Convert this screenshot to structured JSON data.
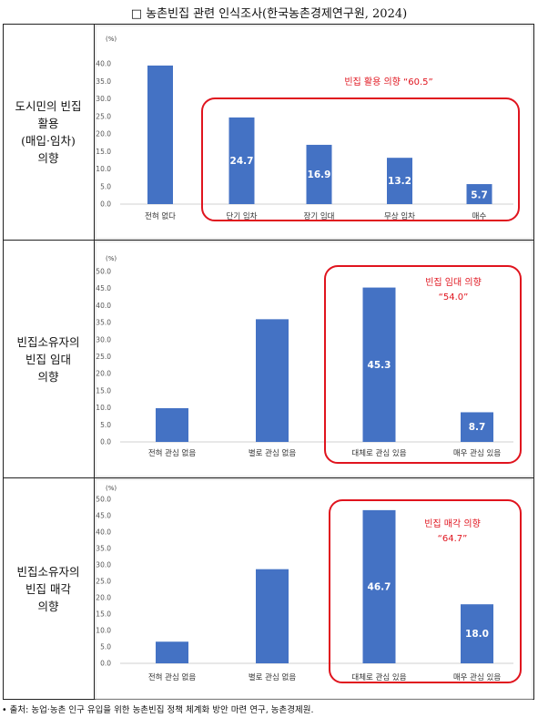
{
  "title": "□ 농촌빈집 관련 인식조사(한국농촌경제연구원, 2024)",
  "rows": [
    {
      "label_lines": [
        "도시민의 빈집",
        "활용",
        "(매입·임차)",
        "의향"
      ]
    },
    {
      "label_lines": [
        "빈집소유자의",
        "빈집 임대",
        "의향"
      ]
    },
    {
      "label_lines": [
        "빈집소유자의",
        "빈집 매각",
        "의향"
      ]
    }
  ],
  "chart_data": [
    {
      "type": "bar",
      "unit_label": "(%)",
      "ylim": [
        0,
        40
      ],
      "yticks": [
        "0.0",
        "5.0",
        "10.0",
        "15.0",
        "20.0",
        "25.0",
        "30.0",
        "35.0",
        "40.0"
      ],
      "categories": [
        "전혀 없다",
        "단기 임차",
        "장기 임대",
        "무상 임차",
        "매수"
      ],
      "values": [
        39.5,
        24.7,
        16.9,
        13.2,
        5.7
      ],
      "data_labels": [
        "",
        "24.7",
        "16.9",
        "13.2",
        "5.7"
      ],
      "grid": false,
      "bar_color": "#4472c4",
      "annotation": {
        "text_lines": [
          "빈집 활용 의향 “60.5”"
        ],
        "color": "#e0141e",
        "highlight_from": 1,
        "highlight_to": 4
      }
    },
    {
      "type": "bar",
      "unit_label": "(%)",
      "ylim": [
        0,
        50
      ],
      "yticks": [
        "0.0",
        "5.0",
        "10.0",
        "15.0",
        "20.0",
        "25.0",
        "30.0",
        "35.0",
        "40.0",
        "45.0",
        "50.0"
      ],
      "categories": [
        "전혀 관심 없음",
        "별로 관심 없음",
        "대체로 관심 있음",
        "매우 관심 있음"
      ],
      "values": [
        9.9,
        36.0,
        45.3,
        8.7
      ],
      "data_labels": [
        "",
        "",
        "45.3",
        "8.7"
      ],
      "grid": false,
      "bar_color": "#4472c4",
      "annotation": {
        "text_lines": [
          "빈집 임대 의향",
          "“54.0”"
        ],
        "color": "#e0141e",
        "highlight_from": 2,
        "highlight_to": 3
      }
    },
    {
      "type": "bar",
      "unit_label": "(%)",
      "ylim": [
        0,
        50
      ],
      "yticks": [
        "0.0",
        "5.0",
        "10.0",
        "15.0",
        "20.0",
        "25.0",
        "30.0",
        "35.0",
        "40.0",
        "45.0",
        "50.0"
      ],
      "categories": [
        "전혀 관심 없음",
        "별로 관심 없음",
        "대체로 관심 있음",
        "매우 관심 있음"
      ],
      "values": [
        6.6,
        28.7,
        46.7,
        18.0
      ],
      "data_labels": [
        "",
        "",
        "46.7",
        "18.0"
      ],
      "grid": false,
      "bar_color": "#4472c4",
      "annotation": {
        "text_lines": [
          "빈집 매각 의향",
          "“64.7”"
        ],
        "color": "#e0141e",
        "highlight_from": 2,
        "highlight_to": 3
      }
    }
  ],
  "source": "• 출처: 농업·농촌 인구 유입을 위한 농촌빈집 정책 체계화 방안 마련 연구, 농촌경제원."
}
